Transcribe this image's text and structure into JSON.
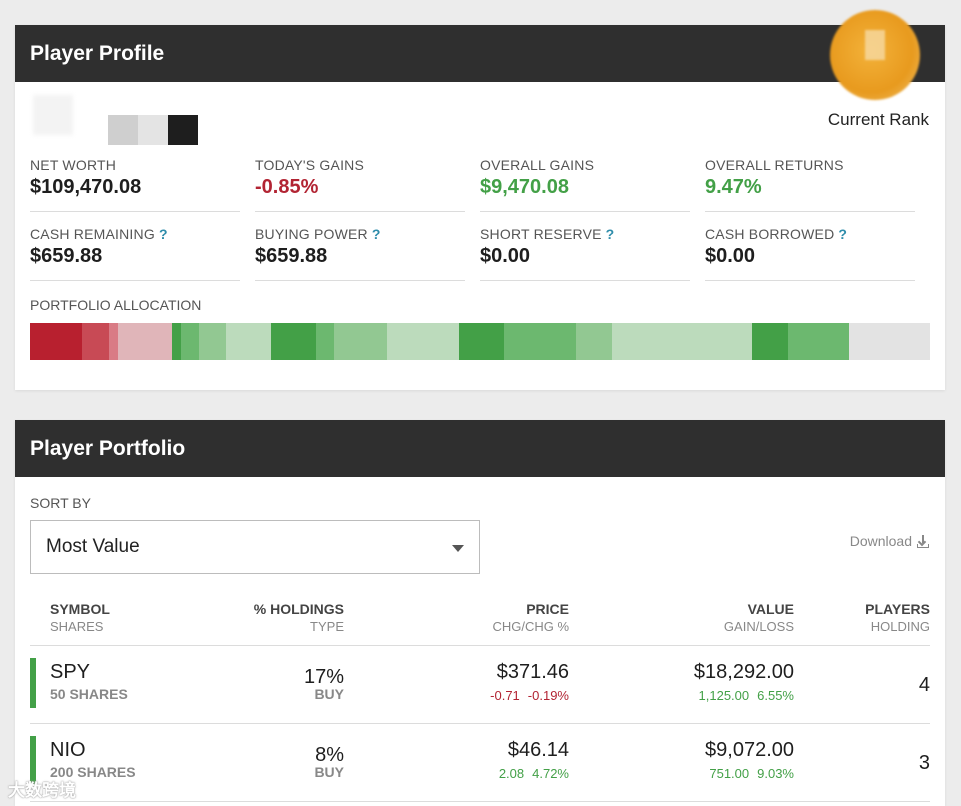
{
  "profile": {
    "title": "Player Profile",
    "rank_label": "Current Rank",
    "stats": [
      {
        "label": "NET WORTH",
        "value": "$109,470.08",
        "help": false,
        "tone": "neutral"
      },
      {
        "label": "TODAY'S GAINS",
        "value": "-0.85%",
        "help": false,
        "tone": "negative"
      },
      {
        "label": "OVERALL GAINS",
        "value": "$9,470.08",
        "help": false,
        "tone": "positive"
      },
      {
        "label": "OVERALL RETURNS",
        "value": "9.47%",
        "help": false,
        "tone": "positive"
      },
      {
        "label": "CASH REMAINING",
        "value": "$659.88",
        "help": true,
        "tone": "neutral"
      },
      {
        "label": "BUYING POWER",
        "value": "$659.88",
        "help": true,
        "tone": "neutral"
      },
      {
        "label": "SHORT RESERVE",
        "value": "$0.00",
        "help": true,
        "tone": "neutral"
      },
      {
        "label": "CASH BORROWED",
        "value": "$0.00",
        "help": true,
        "tone": "neutral"
      }
    ],
    "help_glyph": "?",
    "allocation_label": "PORTFOLIO ALLOCATION",
    "allocation_segments": [
      {
        "share": 5.8,
        "color": "#b8202f"
      },
      {
        "share": 3.0,
        "color": "#c84a55"
      },
      {
        "share": 1.0,
        "color": "#d97b85"
      },
      {
        "share": 6.0,
        "color": "#e0b5b9"
      },
      {
        "share": 1.0,
        "color": "#43a047"
      },
      {
        "share": 2.0,
        "color": "#6cb86f"
      },
      {
        "share": 3.0,
        "color": "#92c892"
      },
      {
        "share": 5.0,
        "color": "#bcdbbc"
      },
      {
        "share": 5.0,
        "color": "#43a047"
      },
      {
        "share": 2.0,
        "color": "#6cb86f"
      },
      {
        "share": 6.0,
        "color": "#92c892"
      },
      {
        "share": 8.0,
        "color": "#bcdbbc"
      },
      {
        "share": 5.0,
        "color": "#43a047"
      },
      {
        "share": 8.0,
        "color": "#6cb86f"
      },
      {
        "share": 4.0,
        "color": "#92c892"
      },
      {
        "share": 15.6,
        "color": "#bcdbbc"
      },
      {
        "share": 4.0,
        "color": "#43a047"
      },
      {
        "share": 6.8,
        "color": "#6cb86f"
      },
      {
        "share": 9.0,
        "color": "#e3e3e3"
      }
    ]
  },
  "portfolio": {
    "title": "Player Portfolio",
    "sort_label": "SORT BY",
    "sort_value": "Most Value",
    "download_label": "Download",
    "columns": {
      "symbol": "SYMBOL",
      "shares": "SHARES",
      "holdings": "% HOLDINGS",
      "type": "TYPE",
      "price": "PRICE",
      "chg": "CHG/CHG %",
      "value": "VALUE",
      "gainloss": "GAIN/LOSS",
      "players": "PLAYERS",
      "holding": "HOLDING"
    },
    "rows": [
      {
        "symbol": "SPY",
        "shares": "50 SHARES",
        "holdings": "17%",
        "type": "BUY",
        "price": "$371.46",
        "chg": "-0.71",
        "chg_pct": "-0.19%",
        "chg_color": "#b22433",
        "value": "$18,292.00",
        "gain": "1,125.00",
        "gain_pct": "6.55%",
        "gain_color": "#43a047",
        "players": "4"
      },
      {
        "symbol": "NIO",
        "shares": "200 SHARES",
        "holdings": "8%",
        "type": "BUY",
        "price": "$46.14",
        "chg": "2.08",
        "chg_pct": "4.72%",
        "chg_color": "#43a047",
        "value": "$9,072.00",
        "gain": "751.00",
        "gain_pct": "9.03%",
        "gain_color": "#43a047",
        "players": "3"
      }
    ]
  },
  "watermark": "大数跨境"
}
